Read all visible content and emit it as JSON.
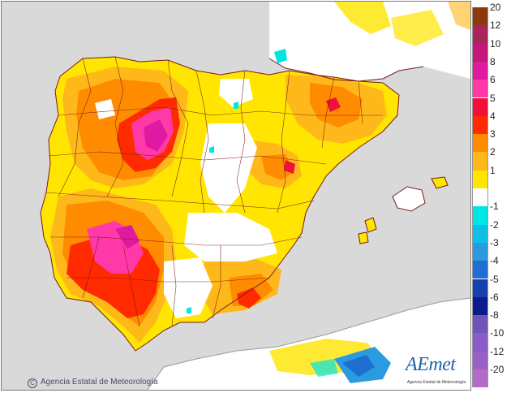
{
  "credit": "Agencia Estatal de Meteorología",
  "logo": {
    "name": "AEmet",
    "subtitle": "Agencia Estatal de Meteorología"
  },
  "legend": {
    "entries": [
      {
        "label": "20",
        "color": "#8b3a0e"
      },
      {
        "label": "12",
        "color": "#a8255a"
      },
      {
        "label": "10",
        "color": "#c2187a"
      },
      {
        "label": "8",
        "color": "#e01aa0"
      },
      {
        "label": "6",
        "color": "#ff3aa8"
      },
      {
        "label": "5",
        "color": "#f0103a"
      },
      {
        "label": "4",
        "color": "#ff2a00"
      },
      {
        "label": "3",
        "color": "#ff8c00"
      },
      {
        "label": "2",
        "color": "#ffb81a"
      },
      {
        "label": "1",
        "color": "#ffe500"
      },
      {
        "label": "",
        "color": "#ffffff"
      },
      {
        "label": "-1",
        "color": "#00e5e5"
      },
      {
        "label": "-2",
        "color": "#10bfe8"
      },
      {
        "label": "-3",
        "color": "#2a9be0"
      },
      {
        "label": "-4",
        "color": "#1f6fd0"
      },
      {
        "label": "-5",
        "color": "#173fb0"
      },
      {
        "label": "-6",
        "color": "#0f1a8a"
      },
      {
        "label": "-8",
        "color": "#6f55b8"
      },
      {
        "label": "-10",
        "color": "#8a5cc8"
      },
      {
        "label": "-12",
        "color": "#9b60c8"
      },
      {
        "label": "-20",
        "color": "#b56ac8"
      }
    ]
  }
}
